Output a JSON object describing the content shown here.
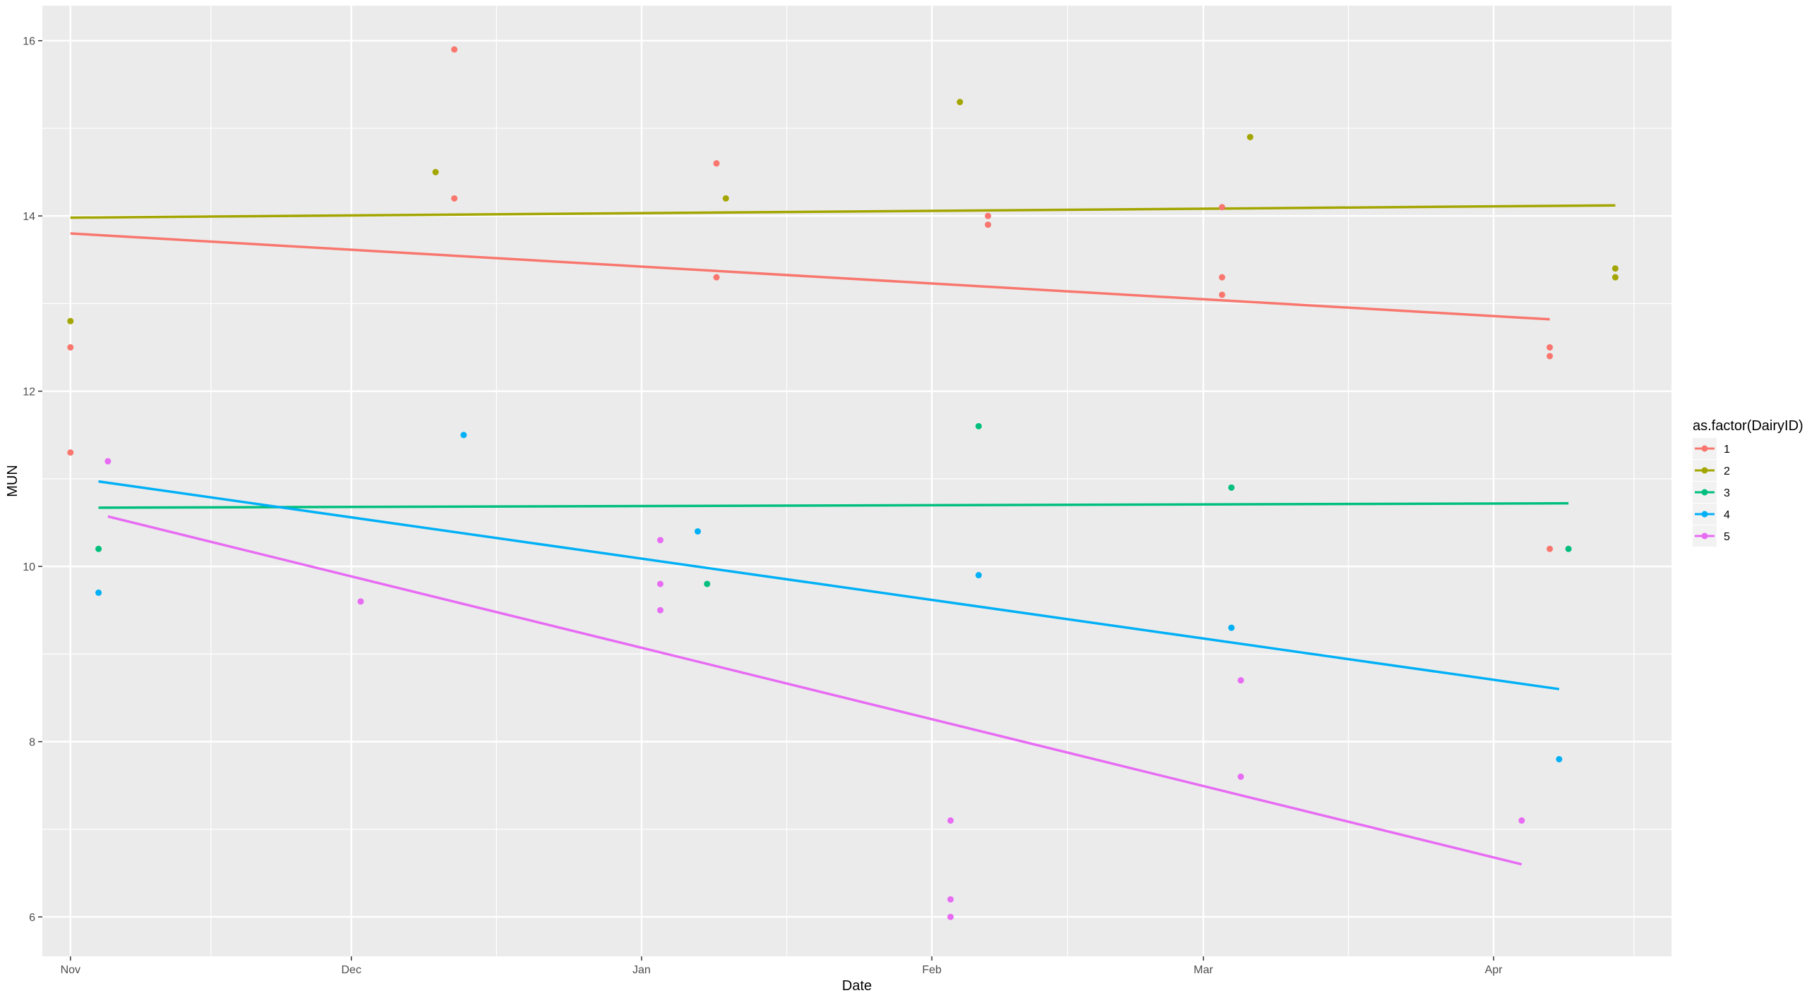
{
  "chart_data": {
    "type": "scatter",
    "xlabel": "Date",
    "ylabel": "MUN",
    "x_type": "date",
    "xlim": [
      "2019-10-29",
      "2020-04-20"
    ],
    "ylim": [
      5.55,
      16.4
    ],
    "x_ticks": [
      {
        "date": "2019-11-01",
        "label": "Nov"
      },
      {
        "date": "2019-12-01",
        "label": "Dec"
      },
      {
        "date": "2020-01-01",
        "label": "Jan"
      },
      {
        "date": "2020-02-01",
        "label": "Feb"
      },
      {
        "date": "2020-03-01",
        "label": "Mar"
      },
      {
        "date": "2020-04-01",
        "label": "Apr"
      }
    ],
    "y_ticks": [
      6,
      8,
      10,
      12,
      14,
      16
    ],
    "grid": true,
    "legend": {
      "title": "as.factor(DairyID)",
      "position": "right"
    },
    "series": [
      {
        "name": "1",
        "color": "#F8766D",
        "points": [
          {
            "x": "2019-11-01",
            "y": 12.5
          },
          {
            "x": "2019-11-01",
            "y": 11.3
          },
          {
            "x": "2019-12-12",
            "y": 15.9
          },
          {
            "x": "2019-12-12",
            "y": 14.2
          },
          {
            "x": "2020-01-09",
            "y": 14.6
          },
          {
            "x": "2020-01-09",
            "y": 13.3
          },
          {
            "x": "2020-02-07",
            "y": 14.0
          },
          {
            "x": "2020-02-07",
            "y": 13.9
          },
          {
            "x": "2020-03-03",
            "y": 14.1
          },
          {
            "x": "2020-03-03",
            "y": 13.3
          },
          {
            "x": "2020-03-03",
            "y": 13.1
          },
          {
            "x": "2020-04-07",
            "y": 12.5
          },
          {
            "x": "2020-04-07",
            "y": 12.4
          },
          {
            "x": "2020-04-07",
            "y": 10.2
          }
        ],
        "trend": [
          {
            "x": "2019-11-01",
            "y": 13.8
          },
          {
            "x": "2020-04-07",
            "y": 12.82
          }
        ]
      },
      {
        "name": "2",
        "color": "#A3A500",
        "points": [
          {
            "x": "2019-11-01",
            "y": 12.8
          },
          {
            "x": "2019-12-10",
            "y": 14.5
          },
          {
            "x": "2020-01-10",
            "y": 14.2
          },
          {
            "x": "2020-02-04",
            "y": 15.3
          },
          {
            "x": "2020-03-06",
            "y": 14.9
          },
          {
            "x": "2020-04-14",
            "y": 13.4
          },
          {
            "x": "2020-04-14",
            "y": 13.3
          }
        ],
        "trend": [
          {
            "x": "2019-11-01",
            "y": 13.98
          },
          {
            "x": "2020-04-14",
            "y": 14.12
          }
        ]
      },
      {
        "name": "3",
        "color": "#00BF7D",
        "points": [
          {
            "x": "2019-11-04",
            "y": 10.2
          },
          {
            "x": "2020-01-08",
            "y": 9.8
          },
          {
            "x": "2020-02-06",
            "y": 11.6
          },
          {
            "x": "2020-03-04",
            "y": 10.9
          },
          {
            "x": "2020-04-09",
            "y": 10.2
          }
        ],
        "trend": [
          {
            "x": "2019-11-04",
            "y": 10.67
          },
          {
            "x": "2020-04-09",
            "y": 10.72
          }
        ]
      },
      {
        "name": "4",
        "color": "#00B0F6",
        "points": [
          {
            "x": "2019-11-04",
            "y": 9.7
          },
          {
            "x": "2019-12-13",
            "y": 11.5
          },
          {
            "x": "2020-01-07",
            "y": 10.4
          },
          {
            "x": "2020-02-06",
            "y": 9.9
          },
          {
            "x": "2020-03-04",
            "y": 9.3
          },
          {
            "x": "2020-04-08",
            "y": 7.8
          }
        ],
        "trend": [
          {
            "x": "2019-11-04",
            "y": 10.97
          },
          {
            "x": "2020-04-08",
            "y": 8.6
          }
        ]
      },
      {
        "name": "5",
        "color": "#E76BF3",
        "points": [
          {
            "x": "2019-11-05",
            "y": 11.2
          },
          {
            "x": "2019-12-02",
            "y": 9.6
          },
          {
            "x": "2020-01-03",
            "y": 10.3
          },
          {
            "x": "2020-01-03",
            "y": 9.8
          },
          {
            "x": "2020-01-03",
            "y": 9.5
          },
          {
            "x": "2020-02-03",
            "y": 7.1
          },
          {
            "x": "2020-02-03",
            "y": 6.2
          },
          {
            "x": "2020-02-03",
            "y": 6.0
          },
          {
            "x": "2020-03-05",
            "y": 8.7
          },
          {
            "x": "2020-03-05",
            "y": 7.6
          },
          {
            "x": "2020-04-04",
            "y": 7.1
          }
        ],
        "trend": [
          {
            "x": "2019-11-05",
            "y": 10.57
          },
          {
            "x": "2020-04-04",
            "y": 6.6
          }
        ]
      }
    ]
  }
}
